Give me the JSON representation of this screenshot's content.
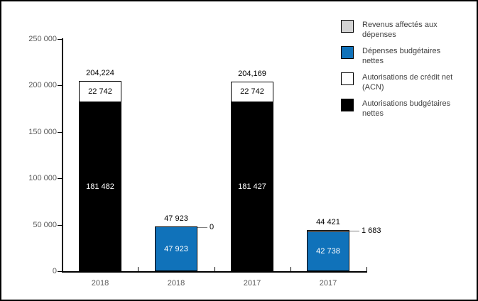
{
  "chart_data": {
    "type": "bar",
    "stacked": true,
    "title": "",
    "xlabel": "",
    "ylabel": "",
    "ylim": [
      0,
      250000
    ],
    "ytick_interval": 50000,
    "ytick_labels": [
      "0",
      "50 000",
      "100 000",
      "150 000",
      "200 000",
      "250 000"
    ],
    "grid": false,
    "categories": [
      "2018",
      "2018",
      "2017",
      "2017"
    ],
    "bars": [
      {
        "category": "2018",
        "total": 204224,
        "total_label": "204,224",
        "callout_label": null,
        "segments": [
          {
            "series": "Autorisations budgétaires nettes",
            "value": 181482,
            "label": "181 482",
            "color": "#000000",
            "label_color": "#FFFFFF"
          },
          {
            "series": "Autorisations de crédit net (ACN)",
            "value": 22742,
            "label": "22 742",
            "color": "#FFFFFF",
            "label_color": "#000000"
          }
        ]
      },
      {
        "category": "2018",
        "total": 47923,
        "total_label": "47 923",
        "callout_label": "0",
        "segments": [
          {
            "series": "Dépenses budgétaires nettes",
            "value": 47923,
            "label": "47 923",
            "color": "#1072BA",
            "label_color": "#FFFFFF"
          },
          {
            "series": "Revenus affectés aux dépenses",
            "value": 0,
            "label": "",
            "color": "#D3D3D3",
            "label_color": "#000000"
          }
        ]
      },
      {
        "category": "2017",
        "total": 204169,
        "total_label": "204,169",
        "callout_label": null,
        "segments": [
          {
            "series": "Autorisations budgétaires nettes",
            "value": 181427,
            "label": "181 427",
            "color": "#000000",
            "label_color": "#FFFFFF"
          },
          {
            "series": "Autorisations de crédit net (ACN)",
            "value": 22742,
            "label": "22 742",
            "color": "#FFFFFF",
            "label_color": "#000000"
          }
        ]
      },
      {
        "category": "2017",
        "total": 44421,
        "total_label": "44 421",
        "callout_label": "1 683",
        "segments": [
          {
            "series": "Dépenses budgétaires nettes",
            "value": 42738,
            "label": "42 738",
            "color": "#1072BA",
            "label_color": "#FFFFFF"
          },
          {
            "series": "Revenus affectés aux dépenses",
            "value": 1683,
            "label": "",
            "color": "#D3D3D3",
            "label_color": "#000000"
          }
        ]
      }
    ],
    "legend": {
      "position": "top-right",
      "items": [
        {
          "label": "Revenus affectés aux dépenses",
          "color": "#D3D3D3"
        },
        {
          "label": "Dépenses budgétaires nettes",
          "color": "#1072BA"
        },
        {
          "label": "Autorisations de crédit net (ACN)",
          "color": "#FFFFFF"
        },
        {
          "label": "Autorisations budgétaires nettes",
          "color": "#000000"
        }
      ]
    },
    "colors": {
      "axis": "#000000",
      "tick_label": "#595959",
      "data_label": "#000000",
      "callout_line": "#808080",
      "bar_blue": "#1072BA",
      "bar_black": "#000000",
      "bar_white": "#FFFFFF",
      "bar_gray": "#D3D3D3"
    }
  }
}
